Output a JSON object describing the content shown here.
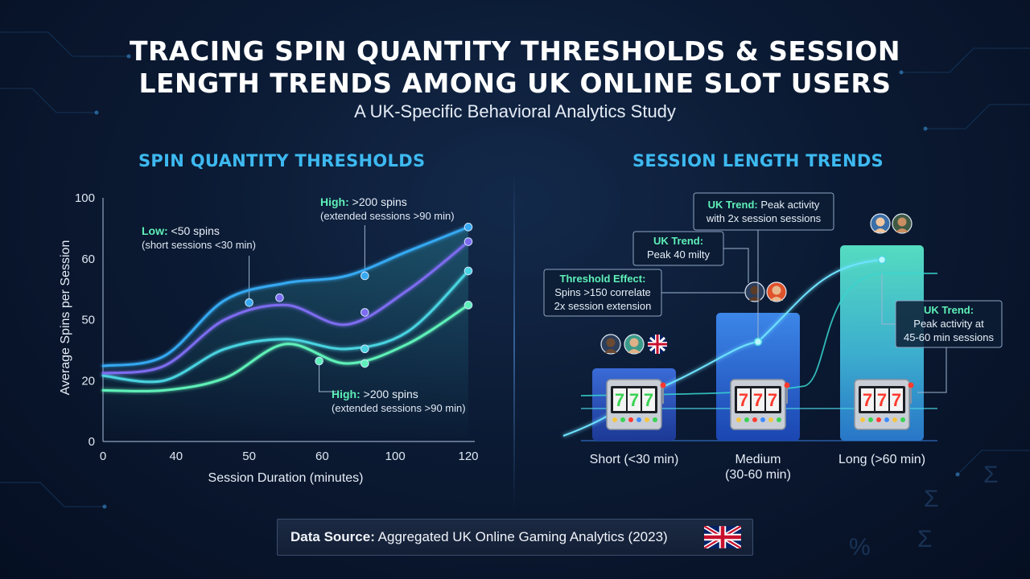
{
  "header": {
    "title_line1": "TRACING SPIN QUANTITY THRESHOLDS & SESSION",
    "title_line2": "LENGTH TRENDS AMONG UK ONLINE SLOT USERS",
    "subtitle": "A UK-Specific Behavioral Analytics Study"
  },
  "left_panel": {
    "title": "SPIN QUANTITY THRESHOLDS"
  },
  "right_panel": {
    "title": "SESSION LENGTH TRENDS"
  },
  "footer": {
    "source_label": "Data Source:",
    "source_text": "Aggregated UK Online Gaming Analytics (2023)",
    "flag_icon": "uk-flag-icon"
  },
  "colors": {
    "accent": "#3db9f0",
    "series": [
      "#36a9f2",
      "#7d6cf0",
      "#4ad3e0",
      "#5ef0b8"
    ]
  },
  "chart_data": [
    {
      "type": "line",
      "xlabel": "Session Duration (minutes)",
      "ylabel": "Average Spins per Session",
      "xlim": [
        0,
        120
      ],
      "ylim": [
        0,
        100
      ],
      "x_ticks": [
        "0",
        "40",
        "50",
        "60",
        "100",
        "120"
      ],
      "y_ticks": [
        "0",
        "20",
        "50",
        "60",
        "100"
      ],
      "x": [
        0,
        20,
        40,
        60,
        80,
        100,
        120
      ],
      "series": [
        {
          "values": [
            31,
            35,
            58,
            65,
            68,
            78,
            88
          ]
        },
        {
          "values": [
            28,
            31,
            50,
            56,
            48,
            62,
            82
          ]
        },
        {
          "values": [
            27,
            25,
            38,
            42,
            38,
            45,
            70
          ]
        },
        {
          "values": [
            21,
            21,
            26,
            40,
            32,
            40,
            56
          ]
        }
      ],
      "points": [
        {
          "series": 0,
          "x": 48,
          "y": 57
        },
        {
          "series": 0,
          "x": 86,
          "y": 68
        },
        {
          "series": 0,
          "x": 120,
          "y": 88
        },
        {
          "series": 1,
          "x": 58,
          "y": 59
        },
        {
          "series": 1,
          "x": 86,
          "y": 53
        },
        {
          "series": 1,
          "x": 120,
          "y": 82
        },
        {
          "series": 2,
          "x": 120,
          "y": 70
        },
        {
          "series": 2,
          "x": 86,
          "y": 38
        },
        {
          "series": 3,
          "x": 71,
          "y": 33
        },
        {
          "series": 3,
          "x": 86,
          "y": 32
        },
        {
          "series": 3,
          "x": 120,
          "y": 56
        }
      ],
      "annotations": [
        {
          "bold": "Low:",
          "text": " <50 spins",
          "sub": "(short sessions <30 min)"
        },
        {
          "bold": "High:",
          "text": " >200 spins",
          "sub": "(extended sessions >90 min)"
        },
        {
          "bold": "High:",
          "text": " >200 spins",
          "sub": "(extended sessions >90 min)"
        }
      ]
    },
    {
      "type": "bar",
      "categories": [
        "Short (<30 min)",
        "Medium",
        "Long (>60 min)"
      ],
      "category_sublabels": [
        "",
        "(30-60 min)",
        ""
      ],
      "values": [
        30,
        53,
        81
      ],
      "trend_values": [
        18,
        41,
        75
      ],
      "annotations": [
        {
          "bold": "UK Trend:",
          "text": "Peak activity",
          "sub": "with 2x session sessions"
        },
        {
          "bold": "UK Trend:",
          "text": "Peak 40 milty"
        },
        {
          "bold": "Threshold Effect:",
          "text": "Spins >150 correlate",
          "sub": "2x session extension"
        },
        {
          "bold": "UK Trend:",
          "text": "Peak activity at",
          "sub": "45-60 min sessions"
        }
      ]
    }
  ]
}
